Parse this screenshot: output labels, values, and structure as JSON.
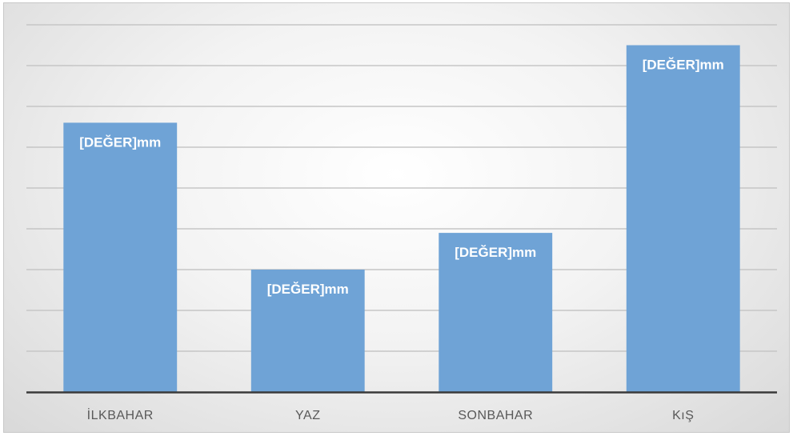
{
  "chart_data": {
    "type": "bar",
    "title": "",
    "xlabel": "",
    "ylabel": "",
    "categories": [
      "İLKBAHAR",
      "YAZ",
      "SONBAHAR",
      "KıŞ"
    ],
    "values": [
      6.6,
      3.0,
      3.9,
      8.5
    ],
    "data_labels": [
      "[DEĞER]mm",
      "[DEĞER]mm",
      "[DEĞER]mm",
      "[DEĞER]mm"
    ],
    "ylim": [
      0,
      9
    ],
    "grid": true,
    "legend": "none",
    "colors": {
      "bar": "#6fa3d6",
      "gridline": "#c6c6c6",
      "axis": "#3a3a3a",
      "label_text": "#ffffff",
      "category_text": "#595959"
    }
  }
}
